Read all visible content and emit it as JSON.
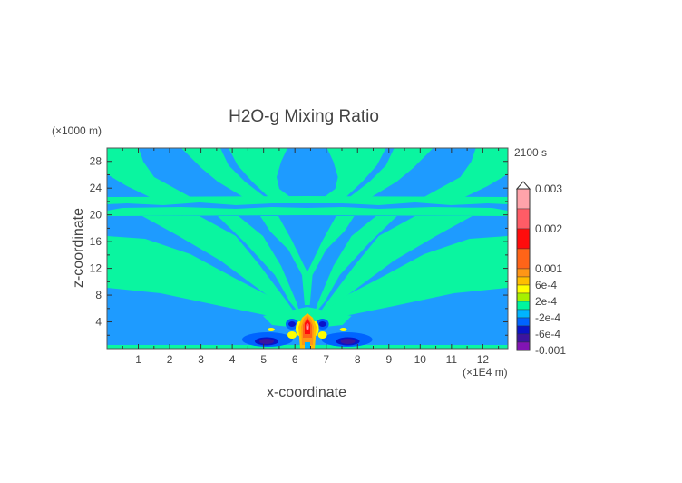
{
  "chart_data": {
    "type": "heatmap",
    "subtype": "filled-contour",
    "title": "H2O-g Mixing Ratio",
    "xlabel": "x-coordinate",
    "ylabel": "z-coordinate",
    "x_unit": "(×1E4 m)",
    "y_unit": "(×1000 m)",
    "time_label": "2100 s",
    "xlim": [
      0,
      12.8
    ],
    "ylim": [
      0,
      30
    ],
    "xticks": [
      1,
      2,
      3,
      4,
      5,
      6,
      7,
      8,
      9,
      10,
      11,
      12
    ],
    "xtick_labels": [
      "1",
      "2",
      "3",
      "4",
      "5",
      "6",
      "7",
      "8",
      "9",
      "10",
      "11",
      "12"
    ],
    "yticks": [
      4,
      8,
      12,
      16,
      20,
      24,
      28
    ],
    "ytick_labels": [
      "4",
      "8",
      "12",
      "16",
      "20",
      "24",
      "28"
    ],
    "grid": false,
    "colorbar": {
      "levels": [
        0.003,
        0.0025,
        0.002,
        0.0015,
        0.001,
        0.0008,
        0.0006,
        0.0004,
        0.0002,
        0,
        -0.0002,
        -0.0004,
        -0.0006,
        -0.0008,
        -0.001
      ],
      "colors": [
        "#ffa3aa",
        "#ff5c66",
        "#ff0c0c",
        "#ff6418",
        "#ff9616",
        "#ffbe00",
        "#ffff00",
        "#a6f000",
        "#00f59e",
        "#00b4ff",
        "#0064ff",
        "#0a14c8",
        "#3c14a0",
        "#8214b4"
      ],
      "labels": [
        {
          "value": 0.003,
          "text": "0.003"
        },
        {
          "value": 0.002,
          "text": "0.002"
        },
        {
          "value": 0.001,
          "text": "0.001"
        },
        {
          "value": 0.0006,
          "text": "6e-4"
        },
        {
          "value": 0.0002,
          "text": "2e-4"
        },
        {
          "value": -0.0002,
          "text": "-2e-4"
        },
        {
          "value": -0.0006,
          "text": "-6e-4"
        },
        {
          "value": -0.001,
          "text": "-0.001"
        }
      ],
      "extend": "max"
    },
    "field_description_colors": {
      "background": "#1e9bff",
      "band": "#0af5a0"
    }
  }
}
